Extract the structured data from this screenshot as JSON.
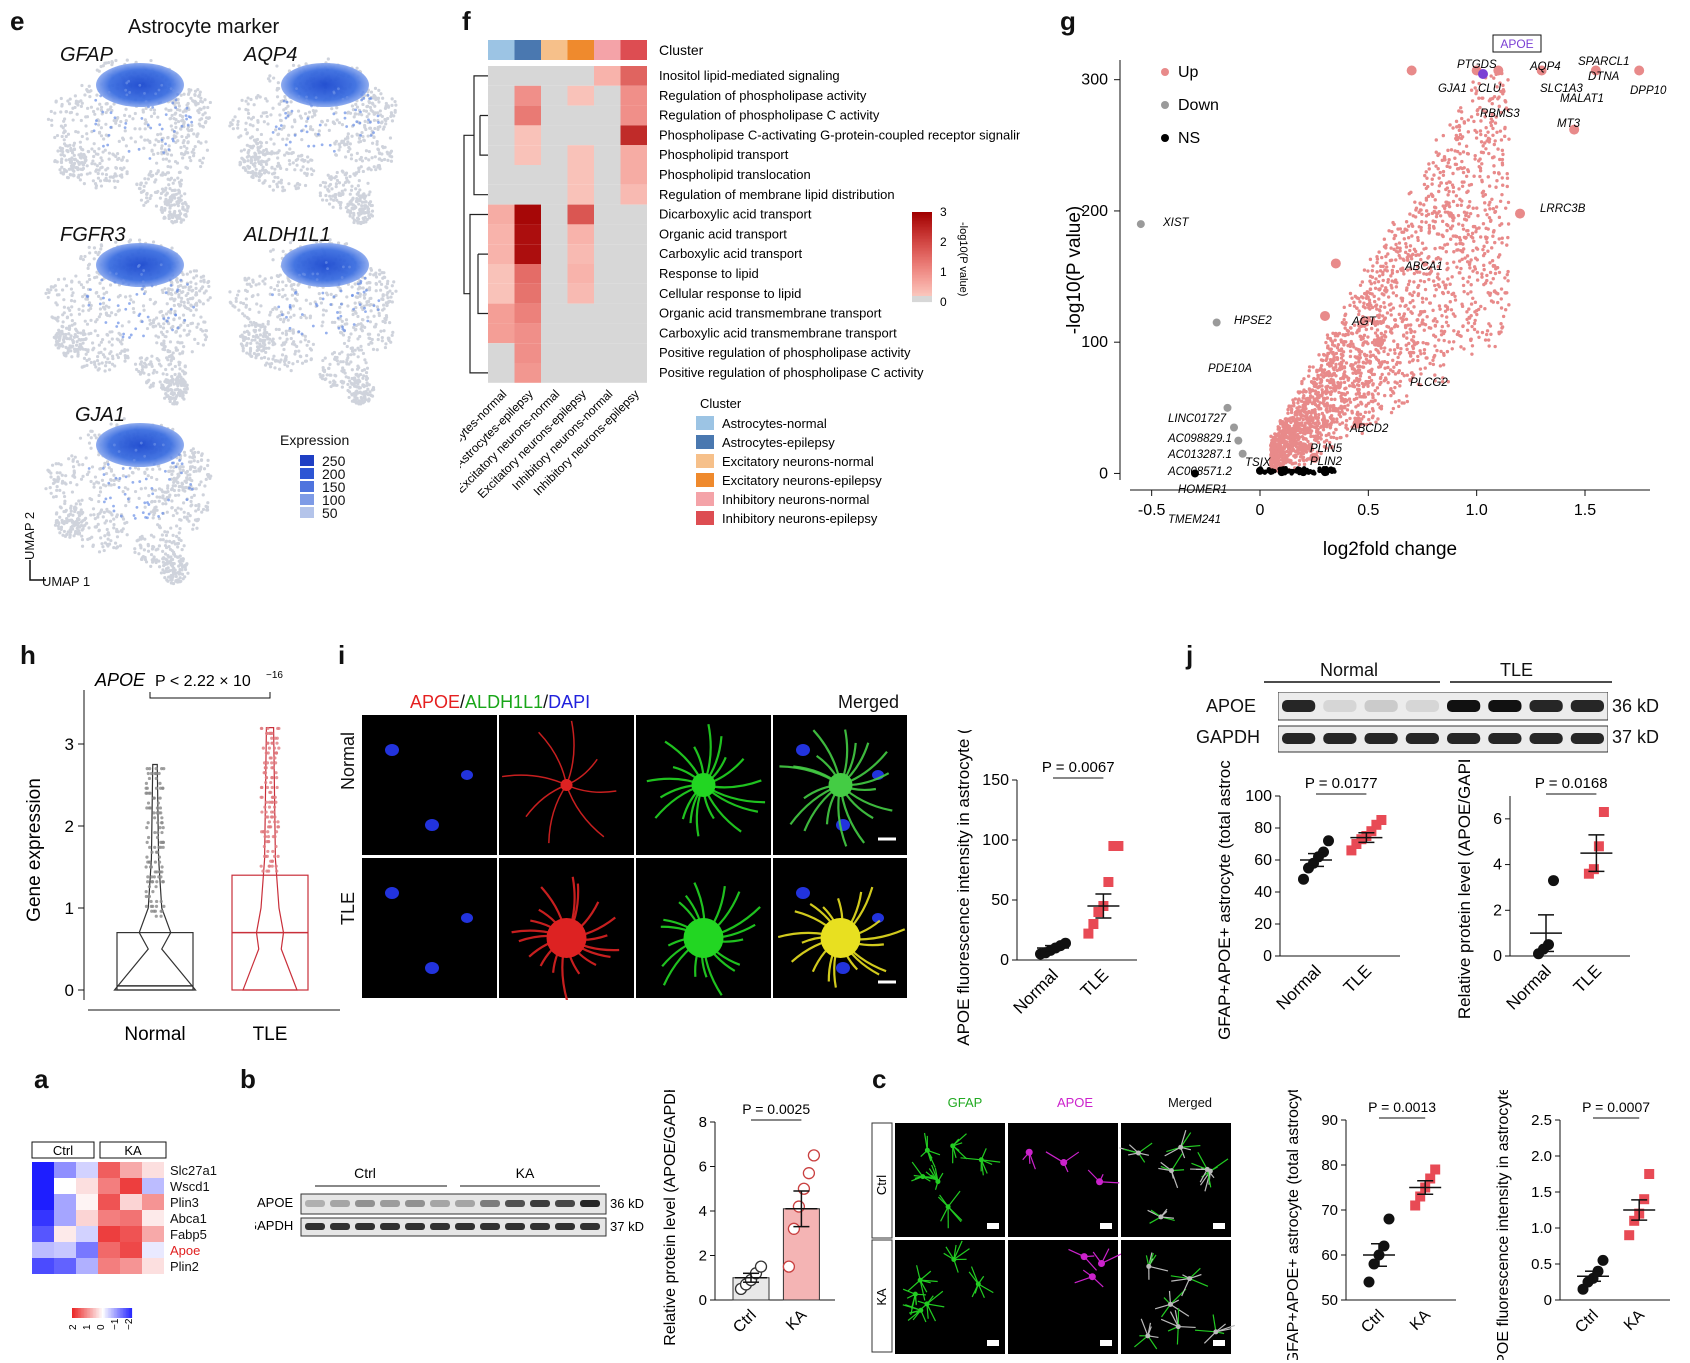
{
  "panels": {
    "e": {
      "letter": "e",
      "title": "Astrocyte marker",
      "genes": [
        "GFAP",
        "AQP4",
        "FGFR3",
        "ALDH1L1",
        "GJA1"
      ],
      "legend_title": "Expression",
      "legend_values": [
        "250",
        "200",
        "150",
        "100",
        "50"
      ],
      "axis_y": "UMAP 2",
      "axis_x": "UMAP 1",
      "colors": {
        "high": "#1f4fd1",
        "low": "#cfd3dc"
      }
    },
    "f": {
      "letter": "f",
      "cluster_label": "Cluster",
      "rows": [
        "Inositol lipid-mediated signaling",
        "Regulation of phospholipase activity",
        "Regulation of phospholipase C activity",
        "Phospholipase C-activating G-protein-coupled receptor signaling pathway",
        "Phospholipid transport",
        "Phospholipid translocation",
        "Regulation of membrane lipid distribution",
        "Dicarboxylic acid transport",
        "Organic acid transport",
        "Carboxylic acid transport",
        "Response to lipid",
        "Cellular response to lipid",
        "Organic acid transmembrane transport",
        "Carboxylic acid transmembrane transport",
        "Positive regulation of phospholipase activity",
        "Positive regulation of phospholipase C activity"
      ],
      "columns": [
        "Astrocytes-normal",
        "Astrocytes-epilepsy",
        "Excitatory neurons-normal",
        "Excitatory neurons-epilepsy",
        "Inhibitory neurons-normal",
        "Inhibitory neurons-epilepsy"
      ],
      "column_colors": [
        "#9cc4e4",
        "#4a78b0",
        "#f6c08a",
        "#ef8a2d",
        "#f4a3a8",
        "#dd4d52"
      ],
      "matrix": [
        [
          0.1,
          0.2,
          0.1,
          0.1,
          0.5,
          1.6
        ],
        [
          0.1,
          1.0,
          0.1,
          0.3,
          0.1,
          1.0
        ],
        [
          0.1,
          1.3,
          0.1,
          0.1,
          0.1,
          1.0
        ],
        [
          0.1,
          0.3,
          0.1,
          0.1,
          0.1,
          2.4
        ],
        [
          0.1,
          0.3,
          0.1,
          0.3,
          0.1,
          0.6
        ],
        [
          0.1,
          0.1,
          0.1,
          0.3,
          0.1,
          0.6
        ],
        [
          0.1,
          0.1,
          0.1,
          0.3,
          0.1,
          0.4
        ],
        [
          0.6,
          2.9,
          0.1,
          1.8,
          0.1,
          0.1
        ],
        [
          0.5,
          2.8,
          0.1,
          0.5,
          0.1,
          0.1
        ],
        [
          0.5,
          2.8,
          0.1,
          0.4,
          0.1,
          0.1
        ],
        [
          0.3,
          1.5,
          0.1,
          0.5,
          0.1,
          0.2
        ],
        [
          0.3,
          1.4,
          0.1,
          0.4,
          0.1,
          0.1
        ],
        [
          0.8,
          1.2,
          0.1,
          0.2,
          0.1,
          0.1
        ],
        [
          0.8,
          1.0,
          0.1,
          0.2,
          0.1,
          0.1
        ],
        [
          0.1,
          1.0,
          0.1,
          0.1,
          0.1,
          0.1
        ],
        [
          0.1,
          0.9,
          0.1,
          0.1,
          0.1,
          0.1
        ]
      ],
      "colorbar_ticks": [
        "3",
        "2",
        "1",
        "0"
      ],
      "colorbar_title": "-log10(P value)",
      "legend_title": "Cluster"
    },
    "g": {
      "letter": "g",
      "legend": [
        "Up",
        "Down",
        "NS"
      ],
      "legend_colors": [
        "#e88a8a",
        "#9a9a9a",
        "#000000"
      ],
      "xlabel": "log2fold change",
      "ylabel": "-log10(P value)",
      "xticks": [
        "-0.5",
        "0",
        "0.5",
        "1.0",
        "1.5"
      ],
      "yticks": [
        "0",
        "100",
        "200",
        "300"
      ],
      "highlight": "APOE",
      "labels_up": [
        "PTGDS",
        "AQP4",
        "SPARCL1",
        "DTNA",
        "GJA1",
        "CLU",
        "SLC1A3",
        "MALAT1",
        "DPP10",
        "RBMS3",
        "MT3",
        "LRRC3B",
        "ABCA1",
        "AGT",
        "PLCG2",
        "ABCD2",
        "PLIN5",
        "PLIN2"
      ],
      "labels_down": [
        "XIST",
        "HPSE2",
        "PDE10A",
        "LINC01727",
        "AC098829.1",
        "AC013287.1",
        "AC008571.2",
        "TSIX",
        "HOMER1",
        "TMEM241"
      ]
    },
    "h": {
      "letter": "h",
      "gene": "APOE",
      "pvalue": "P < 2.22 × 10",
      "pvalue_exp": "−16",
      "ylabel": "Gene expression",
      "yticks": [
        "0",
        "1",
        "2",
        "3"
      ],
      "groups": [
        "Normal",
        "TLE"
      ]
    },
    "i": {
      "letter": "i",
      "channels": [
        "APOE",
        "ALDH1L1",
        "DAPI"
      ],
      "merged": "Merged",
      "rows": [
        "Normal",
        "TLE"
      ],
      "ylabel": "APOE fluorescence intensity in astrocyte (a.u.)",
      "yticks": [
        "0",
        "50",
        "100",
        "150"
      ],
      "pvalue": "P = 0.0067",
      "groups": [
        "Normal",
        "TLE"
      ]
    },
    "j": {
      "letter": "j",
      "groups_blot": [
        "Normal",
        "TLE"
      ],
      "bands": [
        "APOE",
        "GAPDH"
      ],
      "sizes": [
        "36 kD",
        "37 kD"
      ],
      "chart1": {
        "ylabel": "GFAP+APOE+ astrocyte (total astrocyte %)",
        "yticks": [
          "0",
          "20",
          "40",
          "60",
          "80",
          "100"
        ],
        "pvalue": "P = 0.0177",
        "groups": [
          "Normal",
          "TLE"
        ]
      },
      "chart2": {
        "ylabel": "Relative protein level (APOE/GAPDH)",
        "yticks": [
          "0",
          "2",
          "4",
          "6"
        ],
        "pvalue": "P = 0.0168",
        "groups": [
          "Normal",
          "TLE"
        ]
      }
    },
    "a": {
      "letter": "a",
      "groups": [
        "Ctrl",
        "KA"
      ],
      "genes": [
        "Slc27a1",
        "Wscd1",
        "Plin3",
        "Abca1",
        "Fabp5",
        "Apoe",
        "Plin2"
      ],
      "scale": [
        "2",
        "1",
        "0",
        "−1",
        "−2"
      ]
    },
    "b": {
      "letter": "b",
      "groups": [
        "Ctrl",
        "KA"
      ],
      "bands": [
        "APOE",
        "GAPDH"
      ],
      "sizes": [
        "36 kD",
        "37 kD"
      ],
      "ylabel": "Relative protein level (APOE/GAPDH)",
      "yticks": [
        "0",
        "2",
        "4",
        "6",
        "8"
      ],
      "pvalue": "P = 0.0025",
      "groups_x": [
        "Ctrl",
        "KA"
      ]
    },
    "c": {
      "letter": "c",
      "channels": [
        "GFAP",
        "APOE",
        "Merged"
      ],
      "rows": [
        "Ctrl",
        "KA"
      ],
      "chart1": {
        "ylabel": "GFAP+APOE+ astrocyte (total astrocyte %)",
        "yticks": [
          "50",
          "60",
          "70",
          "80",
          "90"
        ],
        "pvalue": "P = 0.0013",
        "groups": [
          "Ctrl",
          "KA"
        ]
      },
      "chart2": {
        "ylabel": "APOE fluorescence intensity in astrocyte (a.u.)",
        "yticks": [
          "0",
          "0.5",
          "1.0",
          "1.5",
          "2.0",
          "2.5"
        ],
        "pvalue": "P = 0.0007",
        "groups": [
          "Ctrl",
          "KA"
        ]
      }
    }
  },
  "chart_data": [
    {
      "type": "scatter",
      "panel": "g",
      "xlabel": "log2fold change",
      "ylabel": "-log10(P value)",
      "xlim": [
        -0.6,
        1.8
      ],
      "ylim": [
        -5,
        315
      ],
      "series": [
        {
          "name": "Up",
          "points": [
            [
              1.2,
              198
            ],
            [
              1.45,
              262
            ],
            [
              0.35,
              160
            ],
            [
              0.3,
              120
            ],
            [
              0.55,
              100
            ],
            [
              0.45,
              38
            ],
            [
              0.2,
              20
            ],
            [
              0.25,
              12
            ],
            [
              0.7,
              307
            ],
            [
              1.0,
              307
            ],
            [
              1.1,
              307
            ],
            [
              1.3,
              307
            ],
            [
              1.55,
              307
            ],
            [
              1.75,
              307
            ]
          ]
        },
        {
          "name": "Down",
          "points": [
            [
              -0.55,
              190
            ],
            [
              -0.2,
              115
            ],
            [
              -0.15,
              50
            ],
            [
              -0.12,
              35
            ],
            [
              -0.1,
              25
            ],
            [
              -0.08,
              15
            ]
          ]
        },
        {
          "name": "NS",
          "points": [
            [
              -0.3,
              0
            ],
            [
              0,
              2
            ],
            [
              0.1,
              1
            ],
            [
              0.2,
              1
            ],
            [
              0.3,
              1
            ]
          ]
        }
      ]
    },
    {
      "type": "scatter",
      "panel": "i",
      "ylabel": "APOE fluorescence intensity in astrocyte (a.u.)",
      "categories": [
        "Normal",
        "TLE"
      ],
      "ylim": [
        0,
        150
      ],
      "series": [
        {
          "name": "Normal",
          "values": [
            5,
            6,
            8,
            10,
            12,
            14
          ],
          "mean": 10,
          "sem": 2
        },
        {
          "name": "TLE",
          "values": [
            22,
            30,
            40,
            45,
            65,
            95,
            95
          ],
          "mean": 45,
          "sem": 10
        }
      ]
    },
    {
      "type": "scatter",
      "panel": "j-1",
      "ylabel": "GFAP+APOE+ astrocyte (total astrocyte %)",
      "categories": [
        "Normal",
        "TLE"
      ],
      "ylim": [
        0,
        100
      ],
      "series": [
        {
          "name": "Normal",
          "values": [
            48,
            55,
            58,
            62,
            65,
            72
          ],
          "mean": 60,
          "sem": 4
        },
        {
          "name": "TLE",
          "values": [
            66,
            70,
            73,
            75,
            78,
            82,
            85
          ],
          "mean": 74,
          "sem": 3
        }
      ]
    },
    {
      "type": "scatter",
      "panel": "j-2",
      "ylabel": "Relative protein level (APOE/GAPDH)",
      "categories": [
        "Normal",
        "TLE"
      ],
      "ylim": [
        0,
        7
      ],
      "series": [
        {
          "name": "Normal",
          "values": [
            0.1,
            0.3,
            0.5,
            3.3
          ],
          "mean": 1.0,
          "sem": 0.8
        },
        {
          "name": "TLE",
          "values": [
            3.6,
            3.8,
            4.8,
            6.3
          ],
          "mean": 4.5,
          "sem": 0.8
        }
      ]
    },
    {
      "type": "bar",
      "panel": "b",
      "ylabel": "Relative protein level (APOE/GAPDH)",
      "categories": [
        "Ctrl",
        "KA"
      ],
      "values": [
        1.0,
        4.1
      ],
      "ylim": [
        0,
        8
      ],
      "points": [
        [
          0.5,
          0.7,
          0.9,
          1.2,
          1.5
        ],
        [
          1.5,
          3.2,
          4.2,
          5.0,
          5.7,
          6.5
        ]
      ]
    },
    {
      "type": "scatter",
      "panel": "c-1",
      "ylabel": "GFAP+APOE+ astrocyte (total astrocyte %)",
      "categories": [
        "Ctrl",
        "KA"
      ],
      "ylim": [
        50,
        90
      ],
      "series": [
        {
          "name": "Ctrl",
          "values": [
            54,
            58,
            60,
            62,
            68
          ],
          "mean": 60,
          "sem": 2.5
        },
        {
          "name": "KA",
          "values": [
            71,
            73,
            75,
            77,
            79
          ],
          "mean": 75,
          "sem": 1.5
        }
      ]
    },
    {
      "type": "scatter",
      "panel": "c-2",
      "ylabel": "APOE fluorescence intensity in astrocyte (a.u.)",
      "categories": [
        "Ctrl",
        "KA"
      ],
      "ylim": [
        0,
        2.5
      ],
      "series": [
        {
          "name": "Ctrl",
          "values": [
            0.15,
            0.25,
            0.3,
            0.4,
            0.55
          ],
          "mean": 0.33,
          "sem": 0.07
        },
        {
          "name": "KA",
          "values": [
            0.9,
            1.1,
            1.2,
            1.4,
            1.75
          ],
          "mean": 1.25,
          "sem": 0.14
        }
      ]
    }
  ]
}
